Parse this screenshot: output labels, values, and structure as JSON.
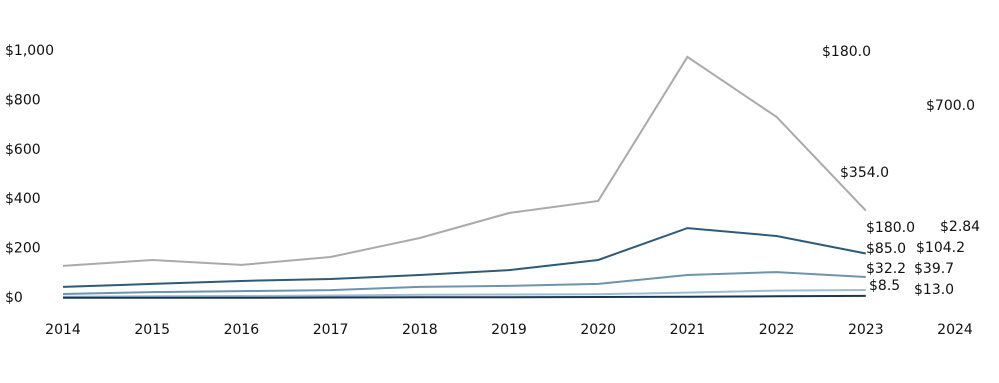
{
  "chart_data": {
    "type": "line",
    "categories": [
      "2014",
      "2015",
      "2016",
      "2017",
      "2018",
      "2019",
      "2020",
      "2021",
      "2022",
      "2023",
      "2024"
    ],
    "ylim": [
      0,
      1000
    ],
    "yticks": [
      {
        "value": 0,
        "label": "$0"
      },
      {
        "value": 200,
        "label": "$200"
      },
      {
        "value": 400,
        "label": "$400"
      },
      {
        "value": 600,
        "label": "$600"
      },
      {
        "value": 800,
        "label": "$800"
      },
      {
        "value": 1000,
        "label": "$1,000"
      }
    ],
    "series": [
      {
        "color": "#aaaaaa",
        "values": [
          130,
          154,
          134,
          166,
          243,
          344,
          393,
          976,
          733,
          354,
          null
        ],
        "value_labels": [
          null,
          null,
          null,
          null,
          null,
          null,
          null,
          null,
          null,
          "$354.0",
          null
        ]
      },
      {
        "color": "#2e5a78",
        "values": [
          45,
          57,
          69,
          77,
          93,
          113,
          154,
          283,
          251,
          180,
          null
        ],
        "value_labels": [
          null,
          null,
          null,
          null,
          null,
          null,
          null,
          null,
          null,
          "$180.0",
          null
        ]
      },
      {
        "color": "#6d93ad",
        "values": [
          16,
          24,
          28,
          32,
          45,
          49,
          57,
          93,
          105,
          85,
          null
        ],
        "value_labels": [
          null,
          null,
          null,
          null,
          null,
          null,
          null,
          null,
          null,
          "$85.0",
          null
        ]
      },
      {
        "color": "#9dbdd1",
        "values": [
          5,
          7,
          8,
          10,
          13,
          14,
          15,
          22,
          30,
          32.2,
          null
        ],
        "value_labels": [
          null,
          null,
          null,
          null,
          null,
          null,
          null,
          null,
          null,
          "$32.2",
          null
        ]
      },
      {
        "color": "#1a3650",
        "values": [
          1,
          1,
          1,
          2,
          3,
          3,
          4,
          5,
          7,
          8.5,
          null
        ],
        "value_labels": [
          null,
          null,
          null,
          null,
          null,
          null,
          null,
          null,
          null,
          "$8.5",
          null
        ]
      }
    ],
    "annotations": [
      "$180.0",
      "$700.0",
      "$2.84",
      "$104.2",
      "$39.7",
      "$13.0"
    ]
  }
}
